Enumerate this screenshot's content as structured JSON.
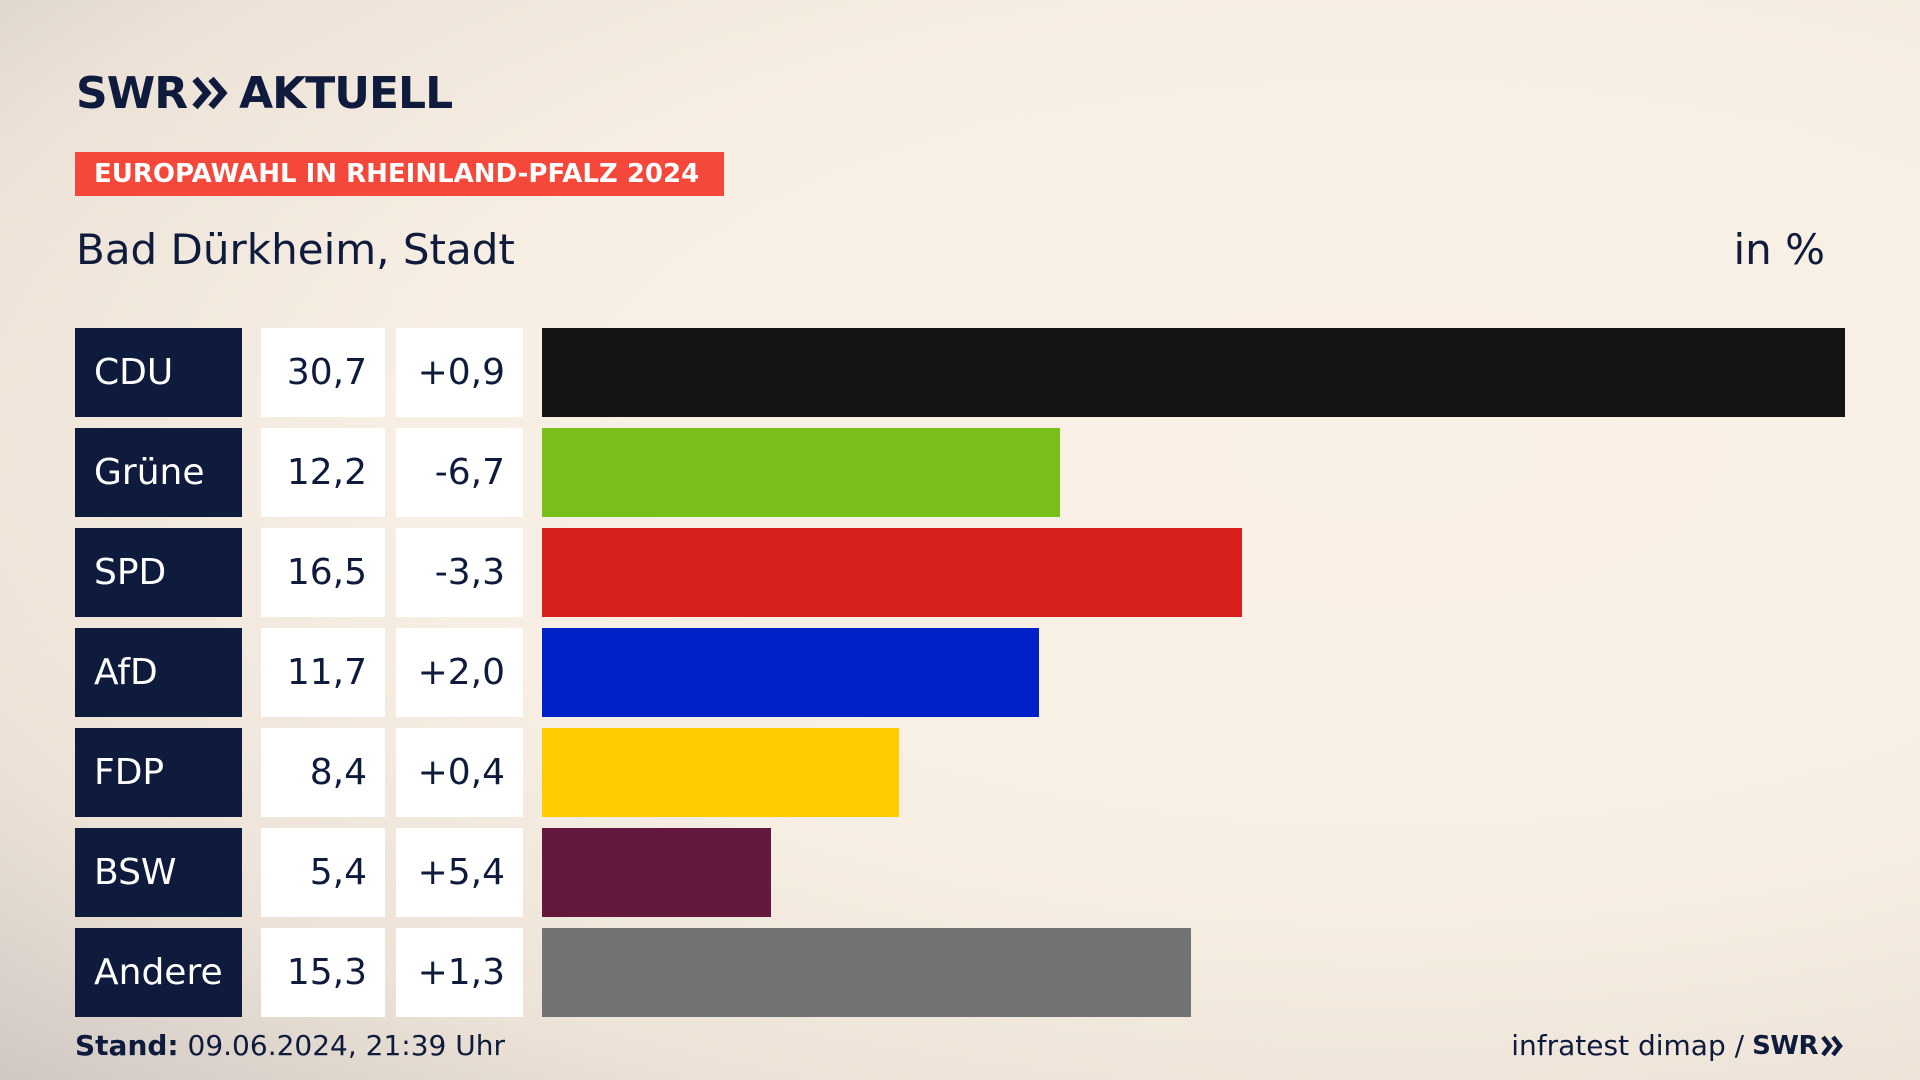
{
  "header": {
    "logo_brand": "SWR",
    "logo_product": "AKTUELL",
    "tag_label": "EUROPAWAHL IN RHEINLAND-PFALZ 2024",
    "region": "Bad Dürkheim, Stadt",
    "unit": "in %"
  },
  "colors": {
    "navy": "#0e1b3d",
    "tag": "#f5473a"
  },
  "chart_data": {
    "type": "bar",
    "orientation": "horizontal",
    "categories": [
      "CDU",
      "Grüne",
      "SPD",
      "AfD",
      "FDP",
      "BSW",
      "Andere"
    ],
    "values": [
      30.7,
      12.2,
      16.5,
      11.7,
      8.4,
      5.4,
      15.3
    ],
    "value_labels": [
      "30,7",
      "12,2",
      "16,5",
      "11,7",
      "8,4",
      "5,4",
      "15,3"
    ],
    "diff_labels": [
      "+0,9",
      "-6,7",
      "-3,3",
      "+2,0",
      "+0,4",
      "+5,4",
      "+1,3"
    ],
    "colors": [
      "#141414",
      "#79bf1c",
      "#d71f1e",
      "#0021c8",
      "#ffcc00",
      "#65183e",
      "#727375"
    ],
    "title": "Bad Dürkheim, Stadt",
    "unit": "in %",
    "xlim": [
      0,
      30.7
    ],
    "grid": false,
    "legend": "none"
  },
  "footer": {
    "stand_label": "Stand:",
    "stand_value": "09.06.2024, 21:39 Uhr",
    "source": "infratest dimap /",
    "source_brand": "SWR"
  }
}
